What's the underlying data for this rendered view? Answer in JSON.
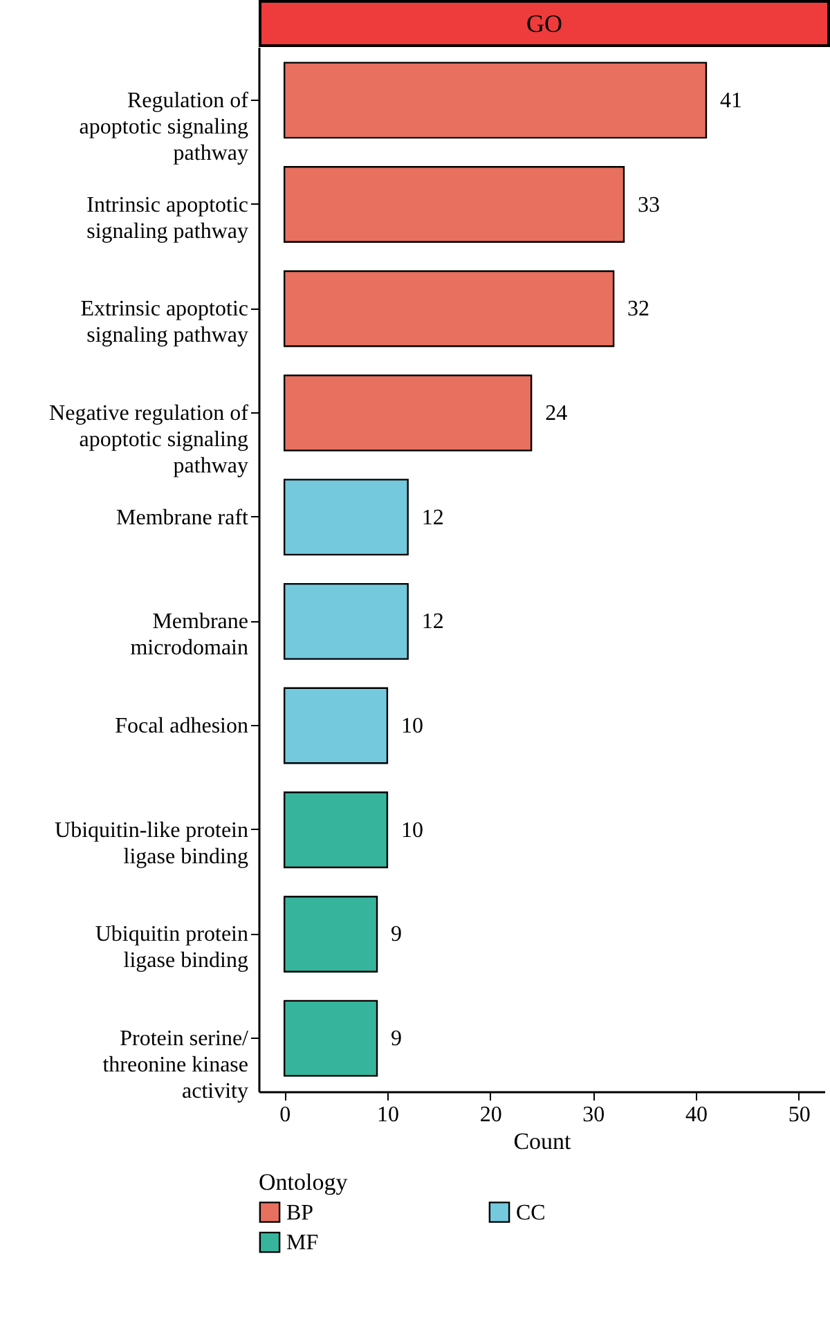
{
  "chart_data": {
    "type": "bar",
    "orientation": "horizontal",
    "title": "GO",
    "xlabel": "Count",
    "legend_title": "Ontology",
    "categories": [
      "Regulation of apoptotic signaling pathway",
      "Intrinsic apoptotic signaling pathway",
      "Extrinsic apoptotic signaling pathway",
      "Negative regulation of apoptotic signaling pathway",
      "Membrane raft",
      "Membrane microdomain",
      "Focal adhesion",
      "Ubiquitin-like protein ligase binding",
      "Ubiquitin protein ligase binding",
      "Protein serine/threonine kinase activity"
    ],
    "series": [
      {
        "name": "BP",
        "color": "#e8705f",
        "values": [
          41,
          33,
          32,
          24,
          null,
          null,
          null,
          null,
          null,
          null
        ]
      },
      {
        "name": "CC",
        "color": "#74c9dd",
        "values": [
          null,
          null,
          null,
          null,
          12,
          12,
          10,
          null,
          null,
          null
        ]
      },
      {
        "name": "MF",
        "color": "#37b49c",
        "values": [
          null,
          null,
          null,
          null,
          null,
          null,
          null,
          10,
          9,
          9
        ]
      }
    ],
    "xlim": [
      -2.5,
      52.5
    ],
    "xticks": [
      0,
      10,
      20,
      30,
      40,
      50
    ],
    "data_labels": true,
    "grid": false,
    "legend": "bottom"
  }
}
